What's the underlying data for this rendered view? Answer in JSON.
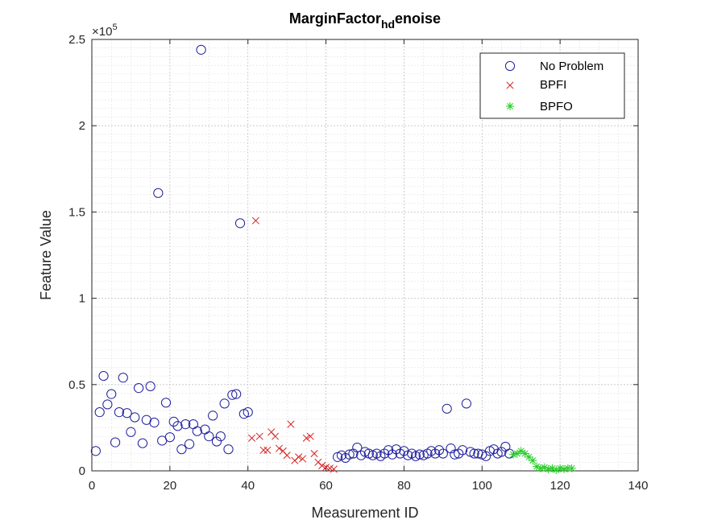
{
  "chart_data": {
    "type": "scatter",
    "title": "MarginFactor",
    "title_subscript": "hd",
    "title_suffix": "enoise",
    "xlabel": "Measurement ID",
    "ylabel": "Feature Value",
    "y_exponent": "×10",
    "y_exponent_power": "5",
    "xlim": [
      0,
      140
    ],
    "ylim": [
      0,
      2.5
    ],
    "xticks": [
      0,
      20,
      40,
      60,
      80,
      100,
      120,
      140
    ],
    "xtick_labels": [
      "0",
      "20",
      "40",
      "60",
      "80",
      "100",
      "120",
      "140"
    ],
    "yticks": [
      0,
      0.5,
      1,
      1.5,
      2,
      2.5
    ],
    "ytick_labels": [
      "0",
      "0.5",
      "1",
      "1.5",
      "2",
      "2.5"
    ],
    "grid": true,
    "minor_grid": true,
    "legend_position": "top-right",
    "series": [
      {
        "name": "No Problem",
        "marker": "circle",
        "color": "#1f1f9e",
        "points": [
          [
            1,
            0.115
          ],
          [
            2,
            0.34
          ],
          [
            3,
            0.55
          ],
          [
            4,
            0.385
          ],
          [
            5,
            0.445
          ],
          [
            6,
            0.165
          ],
          [
            7,
            0.34
          ],
          [
            8,
            0.54
          ],
          [
            9,
            0.335
          ],
          [
            10,
            0.225
          ],
          [
            11,
            0.31
          ],
          [
            12,
            0.48
          ],
          [
            13,
            0.16
          ],
          [
            14,
            0.295
          ],
          [
            15,
            0.49
          ],
          [
            16,
            0.28
          ],
          [
            17,
            1.61
          ],
          [
            18,
            0.175
          ],
          [
            19,
            0.395
          ],
          [
            20,
            0.195
          ],
          [
            21,
            0.285
          ],
          [
            22,
            0.26
          ],
          [
            23,
            0.125
          ],
          [
            24,
            0.27
          ],
          [
            25,
            0.155
          ],
          [
            26,
            0.27
          ],
          [
            27,
            0.23
          ],
          [
            28,
            2.44
          ],
          [
            29,
            0.24
          ],
          [
            30,
            0.2
          ],
          [
            31,
            0.32
          ],
          [
            32,
            0.17
          ],
          [
            33,
            0.2
          ],
          [
            34,
            0.39
          ],
          [
            35,
            0.125
          ],
          [
            36,
            0.44
          ],
          [
            37,
            0.445
          ],
          [
            38,
            1.435
          ],
          [
            39,
            0.33
          ],
          [
            40,
            0.34
          ],
          [
            63,
            0.08
          ],
          [
            64,
            0.09
          ],
          [
            65,
            0.075
          ],
          [
            66,
            0.095
          ],
          [
            67,
            0.1
          ],
          [
            68,
            0.135
          ],
          [
            69,
            0.09
          ],
          [
            70,
            0.11
          ],
          [
            71,
            0.1
          ],
          [
            72,
            0.09
          ],
          [
            73,
            0.1
          ],
          [
            74,
            0.085
          ],
          [
            75,
            0.1
          ],
          [
            76,
            0.12
          ],
          [
            77,
            0.095
          ],
          [
            78,
            0.125
          ],
          [
            79,
            0.1
          ],
          [
            80,
            0.115
          ],
          [
            81,
            0.09
          ],
          [
            82,
            0.1
          ],
          [
            83,
            0.085
          ],
          [
            84,
            0.095
          ],
          [
            85,
            0.09
          ],
          [
            86,
            0.1
          ],
          [
            87,
            0.115
          ],
          [
            88,
            0.1
          ],
          [
            89,
            0.12
          ],
          [
            90,
            0.1
          ],
          [
            91,
            0.36
          ],
          [
            92,
            0.13
          ],
          [
            93,
            0.095
          ],
          [
            94,
            0.1
          ],
          [
            95,
            0.12
          ],
          [
            96,
            0.39
          ],
          [
            97,
            0.11
          ],
          [
            98,
            0.1
          ],
          [
            99,
            0.1
          ],
          [
            100,
            0.095
          ],
          [
            101,
            0.085
          ],
          [
            102,
            0.115
          ],
          [
            103,
            0.125
          ],
          [
            104,
            0.1
          ],
          [
            105,
            0.11
          ],
          [
            106,
            0.14
          ],
          [
            107,
            0.1
          ]
        ]
      },
      {
        "name": "BPFI",
        "marker": "x",
        "color": "#d62020",
        "points": [
          [
            41,
            0.19
          ],
          [
            42,
            1.45
          ],
          [
            43,
            0.2
          ],
          [
            44,
            0.12
          ],
          [
            45,
            0.12
          ],
          [
            46,
            0.225
          ],
          [
            47,
            0.2
          ],
          [
            48,
            0.13
          ],
          [
            49,
            0.115
          ],
          [
            50,
            0.09
          ],
          [
            51,
            0.27
          ],
          [
            52,
            0.06
          ],
          [
            53,
            0.08
          ],
          [
            54,
            0.07
          ],
          [
            55,
            0.19
          ],
          [
            56,
            0.2
          ],
          [
            57,
            0.1
          ],
          [
            58,
            0.05
          ],
          [
            59,
            0.03
          ],
          [
            60,
            0.02
          ],
          [
            61,
            0.015
          ],
          [
            62,
            0.01
          ]
        ]
      },
      {
        "name": "BPFO",
        "marker": "star",
        "color": "#22cc22",
        "points": [
          [
            108,
            0.095
          ],
          [
            109,
            0.1
          ],
          [
            110,
            0.115
          ],
          [
            111,
            0.1
          ],
          [
            112,
            0.08
          ],
          [
            113,
            0.06
          ],
          [
            114,
            0.025
          ],
          [
            115,
            0.015
          ],
          [
            116,
            0.02
          ],
          [
            117,
            0.01
          ],
          [
            118,
            0.015
          ],
          [
            119,
            0.005
          ],
          [
            120,
            0.015
          ],
          [
            121,
            0.01
          ],
          [
            122,
            0.015
          ],
          [
            123,
            0.015
          ]
        ]
      }
    ]
  }
}
